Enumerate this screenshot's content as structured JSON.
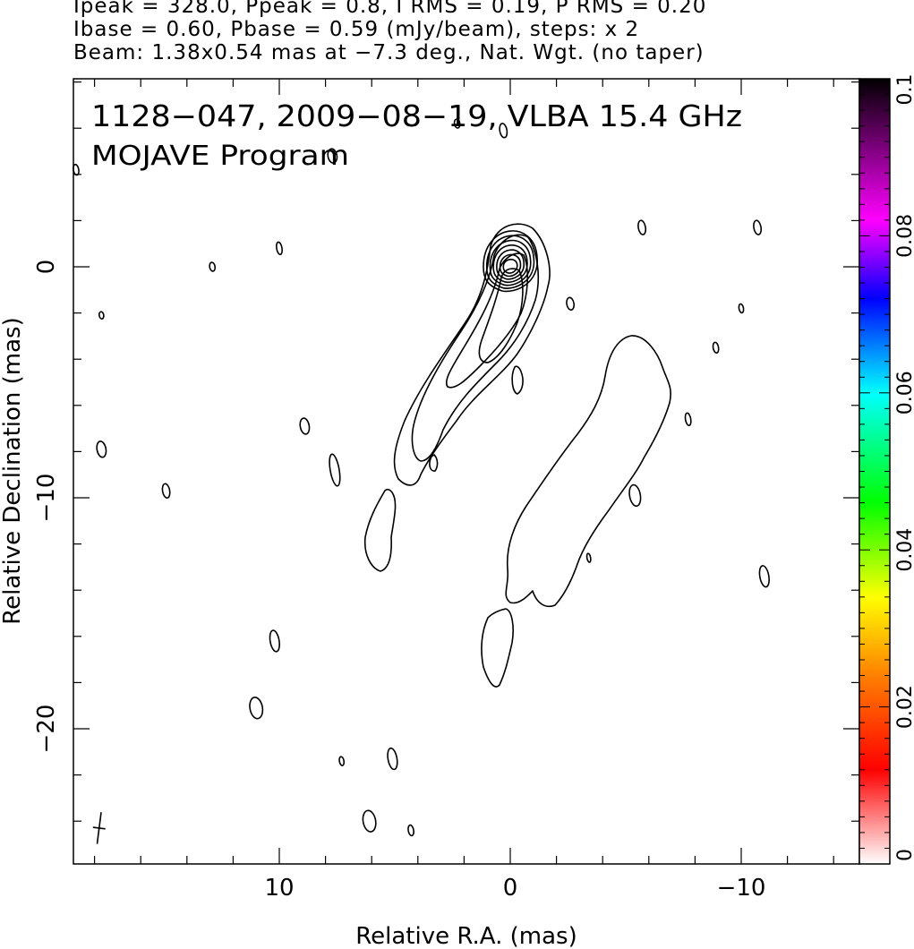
{
  "header": {
    "line1": "Ipeak = 328.0, Ppeak = 0.8, I RMS = 0.19, P RMS = 0.20",
    "line2": "Ibase = 0.60, Pbase = 0.59 (mJy/beam), steps: x 2",
    "line3": "Beam: 1.38x0.54 mas at −7.3 deg., Nat. Wgt. (no taper)"
  },
  "chart_data": {
    "type": "contour",
    "title": "1128−047, 2009−08−19, VLBA 15.4 GHz",
    "subtitle": "MOJAVE Program",
    "xlabel": "Relative R.A. (mas)",
    "ylabel": "Relative Declination (mas)",
    "xlim": [
      19,
      -15
    ],
    "ylim": [
      -26,
      8
    ],
    "x_ticks": [
      10,
      0,
      -10
    ],
    "x_tick_labels": [
      "10",
      "0",
      "−10"
    ],
    "y_ticks": [
      0,
      -10,
      -20
    ],
    "y_tick_labels": [
      "0",
      "−10",
      "−20"
    ],
    "core": {
      "x": 0,
      "y": 0,
      "peak_mJy_per_beam": 328.0
    },
    "contour_levels_mJy_per_beam": [
      0.6,
      1.2,
      2.4,
      4.8,
      9.6,
      19.2,
      38.4,
      76.8,
      153.6,
      307.2
    ],
    "beam": {
      "major_mas": 1.38,
      "minor_mas": 0.54,
      "pa_deg": -7.3,
      "x": 17.8,
      "y": -24.3
    },
    "colorbar": {
      "range": [
        0,
        0.1
      ],
      "ticks": [
        0,
        0.02,
        0.04,
        0.06,
        0.08,
        0.1
      ],
      "tick_labels": [
        "0",
        "0.02",
        "0.04",
        "0.06",
        "0.08",
        "0.1"
      ],
      "colors": [
        "#ffffff",
        "#ff0000",
        "#ff8000",
        "#ffff00",
        "#00ff00",
        "#00ffff",
        "#0000ff",
        "#ff00ff",
        "#000000"
      ]
    },
    "contour_color": "#000000"
  }
}
